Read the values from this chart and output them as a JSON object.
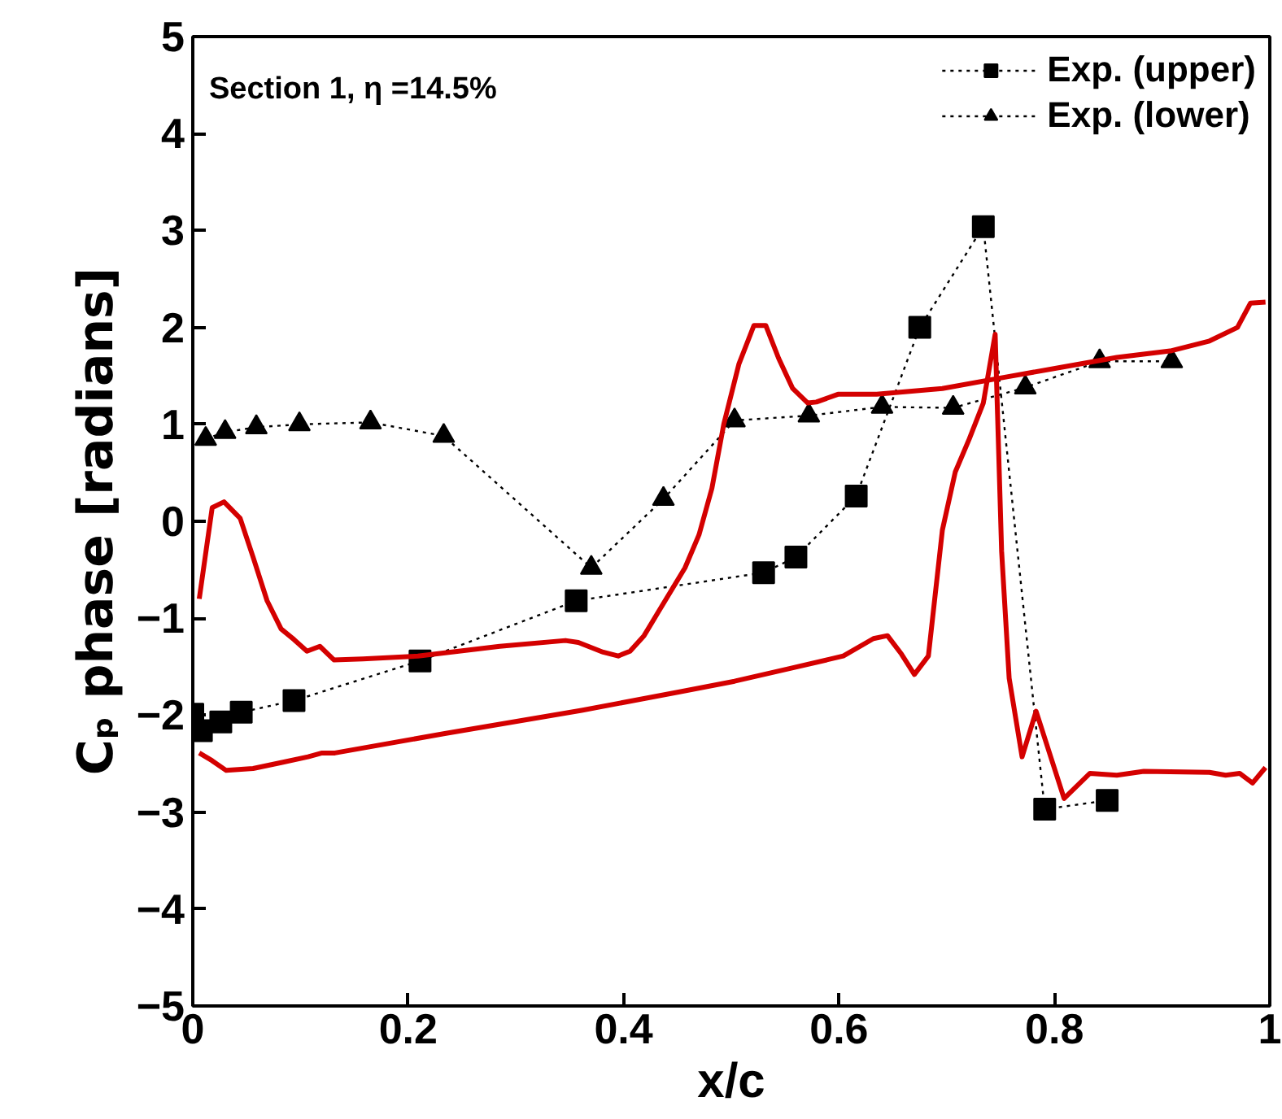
{
  "chart_data": {
    "type": "line",
    "xlabel": "x/c",
    "ylabel": "Cₚ phase [radians]",
    "annotations": [
      "Section 1, η =14.5%"
    ],
    "xlim": [
      0,
      1
    ],
    "ylim": [
      -5,
      5
    ],
    "xticks": [
      0,
      0.2,
      0.4,
      0.6,
      0.8,
      1
    ],
    "yticks": [
      -5,
      -4,
      -3,
      -2,
      -1,
      0,
      1,
      2,
      3,
      4,
      5
    ],
    "grid": false,
    "legend": "top right",
    "series": [
      {
        "name": "Exp. (upper)",
        "color": "#000000",
        "marker": "square",
        "line_style": "dotted",
        "x": [
          0.0,
          0.008,
          0.026,
          0.045,
          0.094,
          0.211,
          0.356,
          0.53,
          0.56,
          0.616,
          0.675,
          0.734,
          0.791,
          0.849
        ],
        "values": [
          -1.99,
          -2.16,
          -2.07,
          -1.97,
          -1.85,
          -1.44,
          -0.82,
          -0.53,
          -0.37,
          0.26,
          2.0,
          3.04,
          -2.97,
          -2.88
        ]
      },
      {
        "name": "Exp. (lower)",
        "color": "#000000",
        "marker": "triangle",
        "line_style": "dotted",
        "x": [
          0.012,
          0.03,
          0.059,
          0.099,
          0.165,
          0.233,
          0.37,
          0.437,
          0.503,
          0.572,
          0.64,
          0.706,
          0.773,
          0.842,
          0.909
        ],
        "values": [
          0.85,
          0.92,
          0.97,
          1.0,
          1.02,
          0.88,
          -0.48,
          0.23,
          1.04,
          1.09,
          1.18,
          1.17,
          1.38,
          1.65,
          1.65
        ]
      },
      {
        "color": "#d40000",
        "marker": "none",
        "line_style": "solid",
        "x": [
          0.006,
          0.018,
          0.029,
          0.044,
          0.056,
          0.069,
          0.082,
          0.094,
          0.106,
          0.118,
          0.131,
          0.158,
          0.209,
          0.285,
          0.346,
          0.358,
          0.381,
          0.395,
          0.406,
          0.419,
          0.432,
          0.457,
          0.47,
          0.482,
          0.493,
          0.507,
          0.521,
          0.532,
          0.544,
          0.557,
          0.571,
          0.579,
          0.599,
          0.635,
          0.696,
          0.756,
          0.807,
          0.858,
          0.909,
          0.944,
          0.97,
          0.982,
          0.996
        ],
        "values": [
          -0.8,
          0.14,
          0.2,
          0.03,
          -0.37,
          -0.82,
          -1.11,
          -1.22,
          -1.34,
          -1.29,
          -1.43,
          -1.42,
          -1.39,
          -1.29,
          -1.23,
          -1.25,
          -1.35,
          -1.39,
          -1.34,
          -1.18,
          -0.94,
          -0.48,
          -0.14,
          0.34,
          1.0,
          1.62,
          2.02,
          2.02,
          1.68,
          1.37,
          1.22,
          1.23,
          1.31,
          1.31,
          1.37,
          1.49,
          1.59,
          1.69,
          1.76,
          1.86,
          2.0,
          2.25,
          2.26
        ]
      },
      {
        "color": "#d40000",
        "marker": "none",
        "line_style": "solid",
        "x": [
          0.006,
          0.018,
          0.031,
          0.056,
          0.082,
          0.107,
          0.12,
          0.132,
          0.234,
          0.361,
          0.452,
          0.503,
          0.554,
          0.604,
          0.632,
          0.645,
          0.658,
          0.67,
          0.683,
          0.696,
          0.708,
          0.721,
          0.734,
          0.745,
          0.751,
          0.758,
          0.77,
          0.783,
          0.809,
          0.833,
          0.858,
          0.883,
          0.944,
          0.959,
          0.972,
          0.984,
          0.996
        ],
        "values": [
          -2.39,
          -2.47,
          -2.57,
          -2.55,
          -2.49,
          -2.43,
          -2.39,
          -2.39,
          -2.19,
          -1.95,
          -1.76,
          -1.65,
          -1.52,
          -1.39,
          -1.21,
          -1.18,
          -1.37,
          -1.58,
          -1.39,
          -0.09,
          0.51,
          0.85,
          1.22,
          1.93,
          -0.31,
          -1.62,
          -2.43,
          -1.96,
          -2.86,
          -2.6,
          -2.62,
          -2.58,
          -2.59,
          -2.62,
          -2.6,
          -2.7,
          -2.54
        ]
      }
    ]
  }
}
